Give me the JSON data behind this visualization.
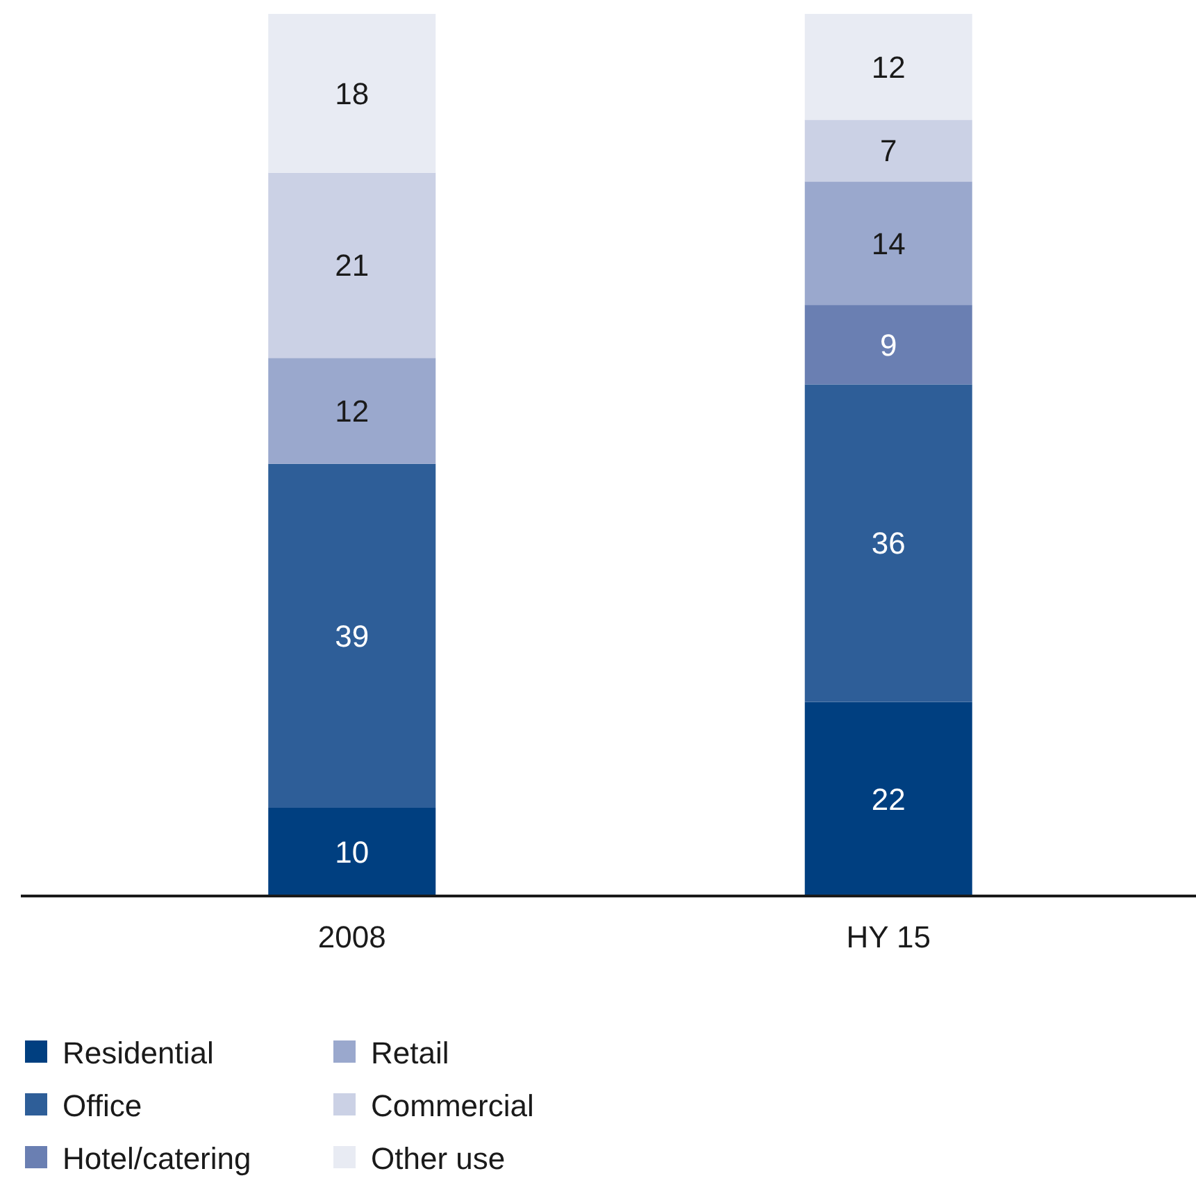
{
  "chart_data": {
    "type": "bar",
    "stacked": true,
    "categories": [
      "2008",
      "HY 15"
    ],
    "series": [
      {
        "name": "Residential",
        "color": "#003f80",
        "values": [
          10,
          22
        ]
      },
      {
        "name": "Office",
        "color": "#2e5e98",
        "values": [
          39,
          36
        ]
      },
      {
        "name": "Hotel/catering",
        "color": "#6a7fb2",
        "values": [
          null,
          9
        ]
      },
      {
        "name": "Retail",
        "color": "#9aa8cd",
        "values": [
          12,
          14
        ]
      },
      {
        "name": "Commercial",
        "color": "#cbd1e5",
        "values": [
          21,
          7
        ]
      },
      {
        "name": "Other use",
        "color": "#e8ebf3",
        "values": [
          18,
          12
        ]
      }
    ],
    "data_labels": true,
    "legend": "bottom"
  }
}
